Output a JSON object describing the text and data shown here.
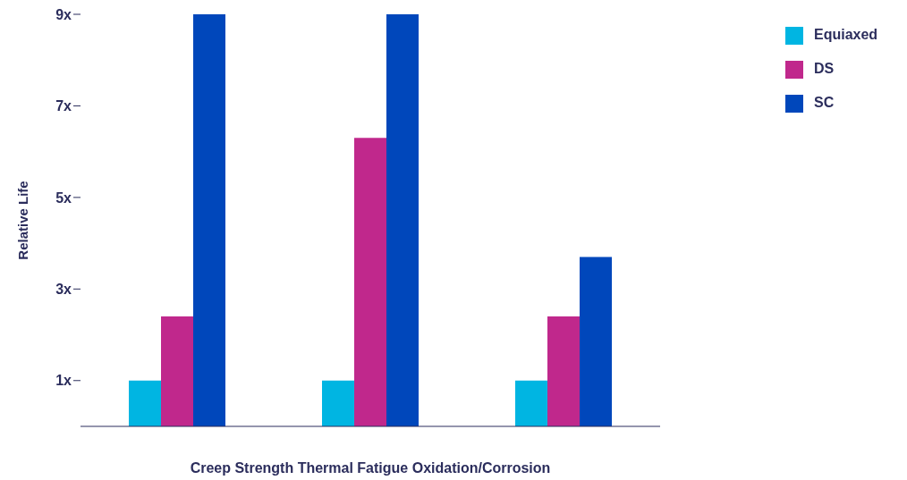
{
  "chart_data": {
    "type": "bar",
    "xlabel": "Creep Strength Thermal Fatigue Oxidation/Corrosion",
    "ylabel": "Relative Life",
    "categories": [
      null,
      null,
      null
    ],
    "series": [
      {
        "name": "Equiaxed",
        "color": "#00b5e2",
        "values": [
          1,
          1,
          1
        ]
      },
      {
        "name": "DS",
        "color": "#c0288c",
        "values": [
          2.4,
          6.3,
          2.4
        ]
      },
      {
        "name": "SC",
        "color": "#0047bb",
        "values": [
          9,
          9,
          3.7
        ]
      }
    ],
    "ylim": [
      0,
      9
    ],
    "yticks": [
      {
        "value": 1,
        "label": "1x"
      },
      {
        "value": 3,
        "label": "3x"
      },
      {
        "value": 5,
        "label": "5x"
      },
      {
        "value": 7,
        "label": "7x"
      },
      {
        "value": 9,
        "label": "9x"
      }
    ],
    "grid": false,
    "legend": "top right",
    "tick_labels": "y"
  }
}
